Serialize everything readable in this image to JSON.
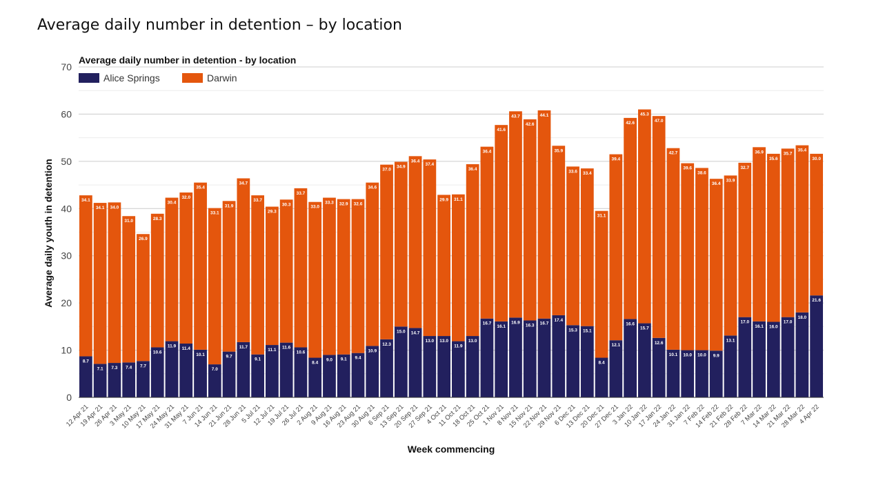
{
  "page": {
    "title": "Average daily number in detention – by location"
  },
  "chart_data": {
    "type": "bar",
    "stacked": true,
    "title": "Average daily number in detention - by location",
    "xlabel": "Week commencing",
    "ylabel": "Average daily youth in detention",
    "ylim": [
      0,
      70
    ],
    "yticks": [
      0,
      10,
      20,
      30,
      40,
      50,
      60,
      70
    ],
    "grid": true,
    "legend_position": "top-left",
    "colors": {
      "Alice Springs": "#22205e",
      "Darwin": "#e4560d"
    },
    "categories": [
      "12 Apr 21",
      "19 Apr 21",
      "26 Apr 21",
      "3 May 21",
      "10 May 21",
      "17 May 21",
      "24 May 21",
      "31 May 21",
      "7 Jun 21",
      "14 Jun 21",
      "21 Jun 21",
      "28 Jun 21",
      "5 Jul 21",
      "12 Jul 21",
      "19 Jul 21",
      "26 Jul 21",
      "2 Aug 21",
      "9 Aug 21",
      "16 Aug 21",
      "23 Aug 21",
      "30 Aug 21",
      "6 Sep 21",
      "13 Sep 21",
      "20 Sep 21",
      "27 Sep 21",
      "4 Oct 21",
      "11 Oct 21",
      "18 Oct 21",
      "25 Oct 21",
      "1 Nov 21",
      "8 Nov 21",
      "15 Nov 21",
      "22 Nov 21",
      "29 Nov 21",
      "6 Dec 21",
      "13 Dec 21",
      "20 Dec 21",
      "27 Dec 21",
      "3 Jan 22",
      "10 Jan 22",
      "17 Jan 22",
      "24 Jan 22",
      "31 Jan 22",
      "7 Feb 22",
      "14 Feb 22",
      "21 Feb 22",
      "28 Feb 22",
      "7 Mar 22",
      "14 Mar 22",
      "21 Mar 22",
      "28 Mar 22",
      "4 Apr 22"
    ],
    "series": [
      {
        "name": "Alice Springs",
        "values": [
          8.7,
          7.1,
          7.3,
          7.4,
          7.7,
          10.6,
          11.9,
          11.4,
          10.1,
          7.0,
          9.7,
          11.7,
          9.1,
          11.1,
          11.6,
          10.6,
          8.4,
          9.0,
          9.1,
          9.4,
          10.9,
          12.3,
          15.0,
          14.7,
          13.0,
          13.0,
          11.9,
          13.0,
          16.7,
          16.1,
          16.9,
          16.3,
          16.7,
          17.4,
          15.3,
          15.1,
          8.4,
          12.1,
          16.6,
          15.7,
          12.6,
          10.1,
          10.0,
          10.0,
          9.9,
          13.1,
          17.0,
          16.1,
          16.0,
          17.0,
          18.0,
          21.6
        ]
      },
      {
        "name": "Darwin",
        "values": [
          34.1,
          34.1,
          34.0,
          31.0,
          26.9,
          28.3,
          30.4,
          32.0,
          35.4,
          33.1,
          31.9,
          34.7,
          33.7,
          29.3,
          30.3,
          33.7,
          33.0,
          33.3,
          32.9,
          32.6,
          34.6,
          37.0,
          34.9,
          36.4,
          37.4,
          29.9,
          31.1,
          36.4,
          36.4,
          41.6,
          43.7,
          42.6,
          44.1,
          35.9,
          33.6,
          33.4,
          31.1,
          39.4,
          42.6,
          45.3,
          47.0,
          42.7,
          39.6,
          38.6,
          36.4,
          33.9,
          32.7,
          36.9,
          35.6,
          35.7,
          35.4,
          30.0
        ]
      }
    ]
  }
}
